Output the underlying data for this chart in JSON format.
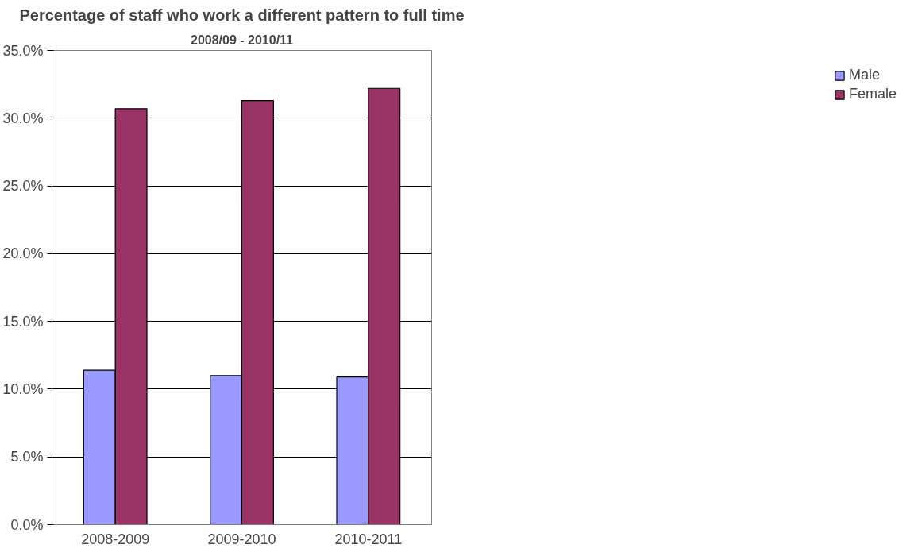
{
  "chart_data": {
    "type": "bar",
    "title": "Percentage of staff who work a different pattern to full time",
    "subtitle": "2008/09 - 2010/11",
    "categories": [
      "2008-2009",
      "2009-2010",
      "2010-2011"
    ],
    "series": [
      {
        "name": "Male",
        "color": "#9999ff",
        "values": [
          11.4,
          11.0,
          10.9
        ]
      },
      {
        "name": "Female",
        "color": "#993366",
        "values": [
          30.7,
          31.3,
          32.2
        ]
      }
    ],
    "ylim": [
      0,
      35
    ],
    "yticks": [
      {
        "value": 0,
        "label": "0.0%"
      },
      {
        "value": 5,
        "label": "5.0%"
      },
      {
        "value": 10,
        "label": "10.0%"
      },
      {
        "value": 15,
        "label": "15.0%"
      },
      {
        "value": 20,
        "label": "20.0%"
      },
      {
        "value": 25,
        "label": "25.0%"
      },
      {
        "value": 30,
        "label": "30.0%"
      },
      {
        "value": 35,
        "label": "35.0%"
      }
    ],
    "grid": "y",
    "legend": "right"
  }
}
